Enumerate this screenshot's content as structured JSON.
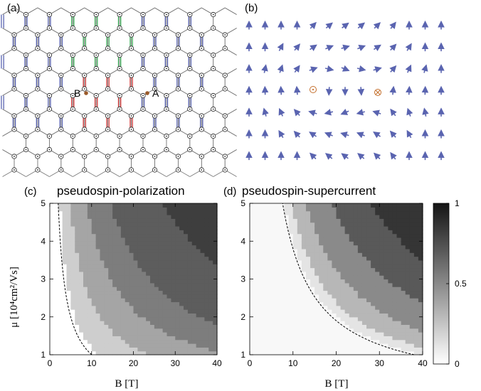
{
  "panels": {
    "a": {
      "label": "(a)",
      "site_labels": [
        "B",
        "A"
      ]
    },
    "b": {
      "label": "(b)"
    },
    "c": {
      "label": "(c)",
      "title": "pseudospin-polarization"
    },
    "d": {
      "label": "(d)",
      "title": "pseudospin-supercurrent"
    }
  },
  "colors": {
    "bond_blue": "#5a64b0",
    "bond_green": "#3fae5a",
    "bond_red": "#d23a3a",
    "lattice": "#777777",
    "site_brown": "#9a5a2a",
    "arrow": "#5a64b0",
    "vortex": "#c4702e"
  },
  "chart_data": [
    {
      "panel": "c",
      "type": "heatmap",
      "title": "pseudospin-polarization",
      "xlabel": "B [T]",
      "ylabel": "μ [10⁴cm²/Vs]",
      "xlim": [
        0,
        40
      ],
      "ylim": [
        1,
        5
      ],
      "xticks": [
        "0",
        "10",
        "20",
        "30",
        "40"
      ],
      "yticks": [
        "1",
        "2",
        "3",
        "4",
        "5"
      ],
      "boundary_curve_B_mu_const": 10,
      "levels": [
        {
          "level": 0,
          "value": 0.0
        },
        {
          "level": 1,
          "value": 0.22
        },
        {
          "level": 2,
          "value": 0.4
        },
        {
          "level": 3,
          "value": 0.58
        },
        {
          "level": 4,
          "value": 0.72
        },
        {
          "level": 5,
          "value": 0.86
        }
      ],
      "level_thresholds_B_mu": [
        12,
        24,
        44,
        72,
        135
      ]
    },
    {
      "panel": "d",
      "type": "heatmap",
      "title": "pseudospin-supercurrent",
      "xlabel": "B [T]",
      "xlim": [
        0,
        40
      ],
      "ylim": [
        1,
        5
      ],
      "xticks": [
        "0",
        "10",
        "20",
        "30",
        "40"
      ],
      "yticks": [
        "1",
        "2",
        "3",
        "4",
        "5"
      ],
      "boundary_curve_B_mu_const": 38,
      "levels": [
        {
          "level": 0,
          "value": 0.03
        },
        {
          "level": 1,
          "value": 0.12
        },
        {
          "level": 2,
          "value": 0.32
        },
        {
          "level": 3,
          "value": 0.52
        },
        {
          "level": 4,
          "value": 0.74
        },
        {
          "level": 5,
          "value": 0.9
        }
      ],
      "level_thresholds_B_mu": [
        40,
        48,
        65,
        95,
        140
      ]
    }
  ],
  "colorbar": {
    "ticks": [
      "0",
      "0.5",
      "1"
    ],
    "range": [
      0,
      1
    ]
  }
}
